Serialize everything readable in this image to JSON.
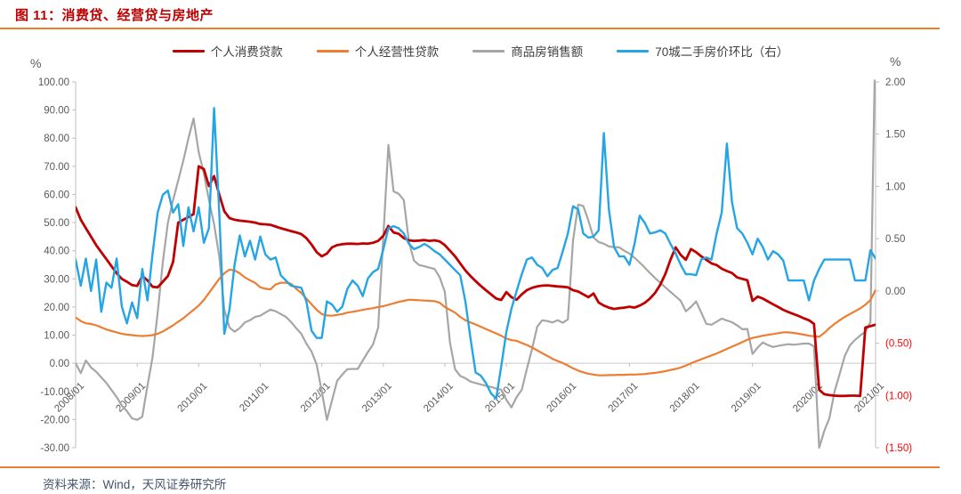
{
  "page": {
    "title": "图 11：消费贷、经营贷与房地产",
    "source": "资料来源：Wind，天风证券研究所"
  },
  "colors": {
    "title_text": "#C00000",
    "rule_orange": "#ED7D31",
    "axis_text": "#595959",
    "negative_axis_text": "#FF0000",
    "axis_line": "#BFBFBF",
    "zero_line": "#C9C9C9",
    "legend_text": "#3F3F3F",
    "source_text": "#44546A"
  },
  "chart_data": {
    "type": "line",
    "title": "图 11：消费贷、经营贷与房地产",
    "start_month": "2008/01",
    "end_month": "2021/01",
    "frequency": "monthly",
    "grid": "zero-line-only",
    "legend_position": "top",
    "x_tick_labels": [
      "2008/01",
      "2009/01",
      "2010/01",
      "2011/01",
      "2012/01",
      "2013/01",
      "2014/01",
      "2015/01",
      "2016/01",
      "2017/01",
      "2018/01",
      "2019/01",
      "2020/01",
      "2021/01"
    ],
    "left_axis": {
      "unit": "%",
      "min": -30,
      "max": 100,
      "step": 10,
      "tick_labels": [
        "100.00",
        "90.00",
        "80.00",
        "70.00",
        "60.00",
        "50.00",
        "40.00",
        "30.00",
        "20.00",
        "10.00",
        "0.00",
        "-10.00",
        "-20.00",
        "-30.00"
      ]
    },
    "right_axis": {
      "unit": "%",
      "min": -1.5,
      "max": 2.0,
      "step": 0.5,
      "tick_labels": [
        "2.00",
        "1.50",
        "1.00",
        "0.50",
        "0.00",
        "(0.50)",
        "(1.00)",
        "(1.50)"
      ]
    },
    "series": [
      {
        "name": "个人消费贷款",
        "axis": "left",
        "color": "#C00000",
        "stroke_width": 2.8,
        "values": [
          55.4,
          51,
          48,
          45,
          42,
          39.5,
          37,
          34.5,
          32,
          30,
          29,
          27.8,
          27.5,
          31,
          29.5,
          27.2,
          27,
          29,
          31,
          36,
          50,
          51,
          52,
          53,
          70,
          69,
          63,
          66.5,
          60,
          54,
          51.6,
          51,
          50.7,
          50.5,
          50.3,
          50,
          49.5,
          49.4,
          49.2,
          48.6,
          48,
          47.5,
          47,
          46.5,
          45.9,
          44.5,
          42.2,
          39.5,
          38,
          39,
          41.2,
          42,
          42.3,
          42.5,
          42.5,
          42.4,
          42.6,
          42.5,
          42.8,
          43.5,
          45.3,
          48.8,
          46.5,
          46,
          44.5,
          43.7,
          43.5,
          43.6,
          43.8,
          43.5,
          43.7,
          43.3,
          42,
          40,
          38,
          35.5,
          33,
          31,
          29.2,
          27.5,
          26,
          24.5,
          23,
          22.5,
          25.3,
          23.5,
          22.6,
          24.5,
          26,
          26.8,
          27.3,
          27.6,
          27.7,
          27.5,
          27.3,
          27.2,
          27,
          26,
          25.5,
          24.5,
          23.5,
          24.8,
          21.6,
          20.5,
          19.8,
          19.3,
          19.6,
          19.8,
          20.1,
          19.8,
          20.5,
          21.5,
          23,
          25,
          27.9,
          31.7,
          36.8,
          41.2,
          38.5,
          36.8,
          40.6,
          39.5,
          38,
          36.8,
          35.5,
          34.9,
          33.6,
          32.8,
          32.1,
          30.5,
          30,
          29.5,
          22.2,
          23.7,
          23,
          22,
          21,
          20,
          19,
          18.2,
          17.5,
          16.8,
          16,
          15.3,
          14,
          -9.4,
          -11,
          -11.3,
          -11.5,
          -11.6,
          -11.6,
          -11.5,
          -11.5,
          -11.6,
          12.7,
          13.2,
          13.7
        ]
      },
      {
        "name": "个人经营性贷款",
        "axis": "left",
        "color": "#ED7D31",
        "stroke_width": 2.2,
        "values": [
          16.3,
          15,
          14.2,
          14,
          13.5,
          12.8,
          12,
          11.5,
          11,
          10.5,
          10.2,
          10,
          9.8,
          9.7,
          9.8,
          10,
          10.5,
          11.3,
          12.4,
          13.5,
          14.8,
          16,
          17.5,
          19,
          20.5,
          22.5,
          25,
          27.5,
          30,
          32,
          33.3,
          33,
          32,
          30.5,
          29.5,
          28.6,
          27,
          26.5,
          26.3,
          28,
          28.6,
          28.6,
          28.3,
          26.5,
          25,
          23,
          21,
          19,
          17.5,
          17,
          16.9,
          17.2,
          17.5,
          18,
          18.3,
          18.6,
          19,
          19.3,
          19.6,
          20,
          20.3,
          20.8,
          21.3,
          21.8,
          22.2,
          22.6,
          22.5,
          22.4,
          22.3,
          22.2,
          22.1,
          21.5,
          20,
          19,
          18,
          16.5,
          15.3,
          14.5,
          13.8,
          13,
          12.2,
          11.4,
          10.6,
          9.8,
          8.8,
          8.2,
          8,
          7.2,
          6.5,
          5.6,
          4.6,
          3.6,
          2.6,
          1.6,
          0.8,
          0.1,
          -0.8,
          -1.8,
          -2.6,
          -3.2,
          -3.7,
          -4,
          -4.3,
          -4.3,
          -4.2,
          -4.2,
          -4.1,
          -4.1,
          -4,
          -4,
          -3.9,
          -3.8,
          -3.6,
          -3.4,
          -3.1,
          -2.8,
          -2.4,
          -2,
          -1.5,
          -0.8,
          0,
          0.7,
          1.4,
          2.1,
          2.8,
          3.5,
          4.3,
          5.1,
          5.9,
          6.7,
          7.5,
          8.4,
          9,
          9.4,
          9.8,
          10.1,
          10.4,
          10.7,
          11,
          11,
          10.8,
          10.5,
          10.2,
          9.8,
          9.6,
          9.4,
          10.8,
          12.5,
          14,
          15.3,
          16.5,
          17.5,
          18.5,
          19.5,
          20.8,
          22.5,
          26
        ]
      },
      {
        "name": "商品房销售额",
        "axis": "left",
        "color": "#A6A6A6",
        "stroke_width": 2.2,
        "clipped_above_max": true,
        "values": [
          0,
          -3.5,
          1,
          -1.5,
          -3,
          -5,
          -7,
          -9.5,
          -12,
          -15,
          -17,
          -19.6,
          -20.1,
          -19,
          -8,
          2,
          18,
          36,
          50,
          58,
          65,
          72,
          80,
          87,
          75,
          67.5,
          58,
          49.4,
          38,
          19.1,
          12.7,
          11.2,
          12.5,
          14.5,
          15.3,
          16.5,
          16.9,
          18,
          19.1,
          18.5,
          17.5,
          16.5,
          14.7,
          12.5,
          10.5,
          7,
          4.2,
          -0.5,
          -10,
          -20.1,
          -13.2,
          -6.2,
          -4,
          -2.1,
          -2,
          -2,
          1,
          4,
          6.7,
          12.7,
          45,
          77.6,
          61.1,
          60.2,
          58,
          43.1,
          36.5,
          34.9,
          34.5,
          34,
          33.5,
          30.5,
          25.4,
          7.4,
          -2.1,
          -4.5,
          -5.3,
          -6.5,
          -7,
          -7.5,
          -8,
          -8.4,
          -9,
          -9.4,
          -13,
          -15.7,
          -12,
          -9.4,
          -2,
          5,
          13,
          15.3,
          15,
          14.5,
          15.3,
          14.4,
          15.6,
          43.6,
          56.4,
          55.9,
          50.7,
          44.7,
          43.1,
          42.5,
          41.5,
          41.3,
          41.2,
          40,
          39,
          37.5,
          35.8,
          34,
          32.1,
          30.3,
          28.6,
          27,
          25.4,
          23.8,
          22.2,
          18.5,
          20,
          22,
          18,
          14,
          13.7,
          14.8,
          15.9,
          15.2,
          14.6,
          13.5,
          12.1,
          12.2,
          3.3,
          5.6,
          7.4,
          6.5,
          5.8,
          6.2,
          6.5,
          6.8,
          6.6,
          6.8,
          7,
          7,
          6,
          -30,
          -24,
          -19.5,
          -10,
          -3.7,
          2.6,
          6.4,
          8.3,
          9.9,
          11.2,
          14.6,
          120
        ]
      },
      {
        "name": "70城二手房价环比（右）",
        "axis": "right",
        "color": "#25A5E3",
        "stroke_width": 2.4,
        "values": [
          0.3,
          0.05,
          0.31,
          0,
          0.3,
          -0.2,
          0.08,
          0.03,
          0.31,
          -0.15,
          -0.31,
          -0.11,
          -0.26,
          0.21,
          -0.09,
          0.35,
          0.75,
          0.92,
          0.96,
          0.75,
          0.83,
          0.43,
          0.8,
          0.57,
          0.8,
          0.46,
          0.6,
          1.75,
          0.75,
          -0.41,
          -0.18,
          0.25,
          0.53,
          0.33,
          0.48,
          0.3,
          0.52,
          0.35,
          0.3,
          0.32,
          0.15,
          0.1,
          0.05,
          0.04,
          0.03,
          -0.1,
          -0.38,
          -0.45,
          -0.45,
          -0.1,
          -0.13,
          -0.2,
          -0.15,
          0.02,
          0.1,
          0.05,
          -0.05,
          0.12,
          0.18,
          0.21,
          0.4,
          0.6,
          0.62,
          0.6,
          0.55,
          0.45,
          0.4,
          0.42,
          0.45,
          0.42,
          0.38,
          0.35,
          0.3,
          0.25,
          0.2,
          0.15,
          -0.1,
          -0.45,
          -0.78,
          -0.81,
          -0.88,
          -0.98,
          -1.03,
          -0.72,
          -0.39,
          -0.17,
          0,
          0.16,
          0.3,
          0.32,
          0.25,
          0.22,
          0.14,
          0.2,
          0.22,
          0.38,
          0.55,
          0.81,
          0.78,
          0.55,
          0.51,
          0.52,
          0.58,
          1.51,
          0.78,
          0.42,
          0.33,
          0.33,
          0.25,
          0.45,
          0.72,
          0.65,
          0.55,
          0.56,
          0.58,
          0.55,
          0.45,
          0.36,
          0.25,
          0.16,
          0.16,
          0.15,
          0.3,
          0.32,
          0.3,
          0.55,
          0.75,
          1.41,
          0.85,
          0.6,
          0.55,
          0.46,
          0.35,
          0.5,
          0.42,
          0.3,
          0.38,
          0.35,
          0.29,
          0.1,
          0.1,
          0.1,
          0.1,
          -0.09,
          0.1,
          0.21,
          0.3,
          0.3,
          0.3,
          0.3,
          0.3,
          0.3,
          0.1,
          0.1,
          0.1,
          0.39,
          0.31
        ]
      }
    ]
  }
}
